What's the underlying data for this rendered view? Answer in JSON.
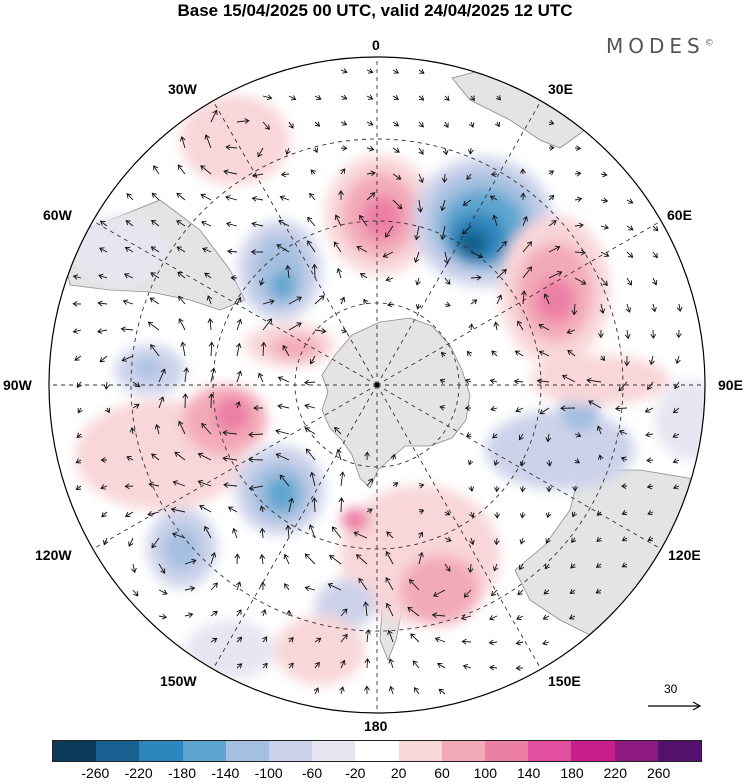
{
  "title": "Base 15/04/2025 00 UTC, valid 24/04/2025 12 UTC",
  "brand": "MODES",
  "brand_mark": "©",
  "longitude_labels": {
    "lon0": "0",
    "lon30e": "30E",
    "lon60e": "60E",
    "lon90e": "90E",
    "lon120e": "120E",
    "lon150e": "150E",
    "lon180": "180",
    "lon150w": "150W",
    "lon120w": "120W",
    "lon90w": "90W",
    "lon60w": "60W",
    "lon30w": "30W"
  },
  "reference_vector": "30",
  "colorbar": {
    "ticks": [
      "-260",
      "-220",
      "-180",
      "-140",
      "-100",
      "-60",
      "-20",
      "20",
      "60",
      "100",
      "140",
      "180",
      "220",
      "260"
    ],
    "colors": [
      "#0c3a5a",
      "#17608f",
      "#2d86bd",
      "#5ea5cf",
      "#a4bfe0",
      "#ccd2ea",
      "#e6e6f2",
      "#ffffff",
      "#f8d6d9",
      "#f3aab8",
      "#ec7fa6",
      "#e24f9f",
      "#c81f8e",
      "#8f1a82",
      "#54126e"
    ]
  },
  "colors": {
    "land": "#e4e4e4",
    "coast": "#8a8a8a",
    "grid": "#333333",
    "arrow": "#111111"
  }
}
